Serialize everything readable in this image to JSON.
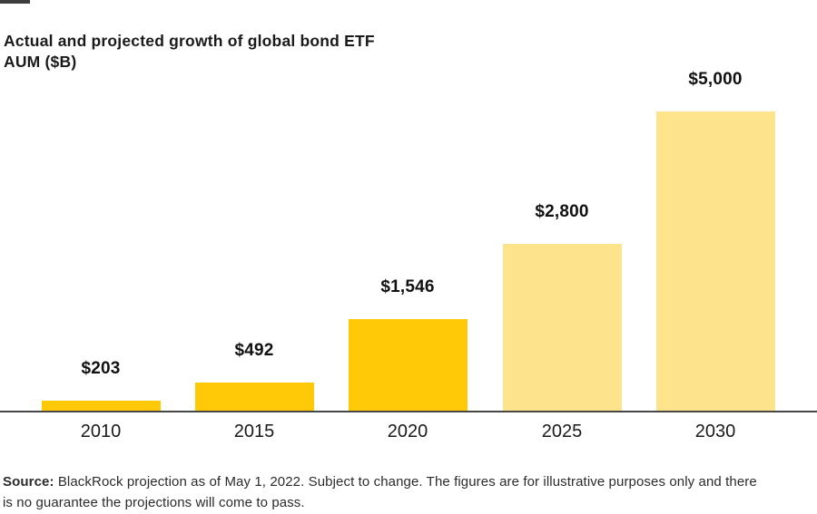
{
  "page": {
    "background": "#FFFFFF",
    "accent_bar_color": "#3D3D3D"
  },
  "header": {
    "title_line1": "Actual and projected growth of global bond ETF",
    "title_line2": "AUM ($B)"
  },
  "chart_data": {
    "type": "bar",
    "title": "Actual and projected growth of global bond ETF AUM ($B)",
    "categories": [
      "2010",
      "2015",
      "2020",
      "2025",
      "2030"
    ],
    "values": [
      203,
      492,
      1546,
      2800,
      5000
    ],
    "value_labels": [
      "$203",
      "$492",
      "$1,546",
      "$2,800",
      "$5,000"
    ],
    "bar_styles": [
      "actual",
      "actual",
      "actual",
      "projected",
      "projected"
    ],
    "colors": {
      "actual": "#FFC907",
      "projected": "#FCE38C"
    },
    "xlabel": "",
    "ylabel": "",
    "ylim": [
      0,
      5000
    ],
    "grid": false,
    "legend": "none",
    "axis_line_color": "#474747"
  },
  "footer": {
    "source_label": "Source:",
    "line1_rest": " BlackRock projection as of May 1, 2022. Subject to change. The figures are for illustrative purposes only and there",
    "line2": "is no guarantee the projections will come to pass."
  }
}
